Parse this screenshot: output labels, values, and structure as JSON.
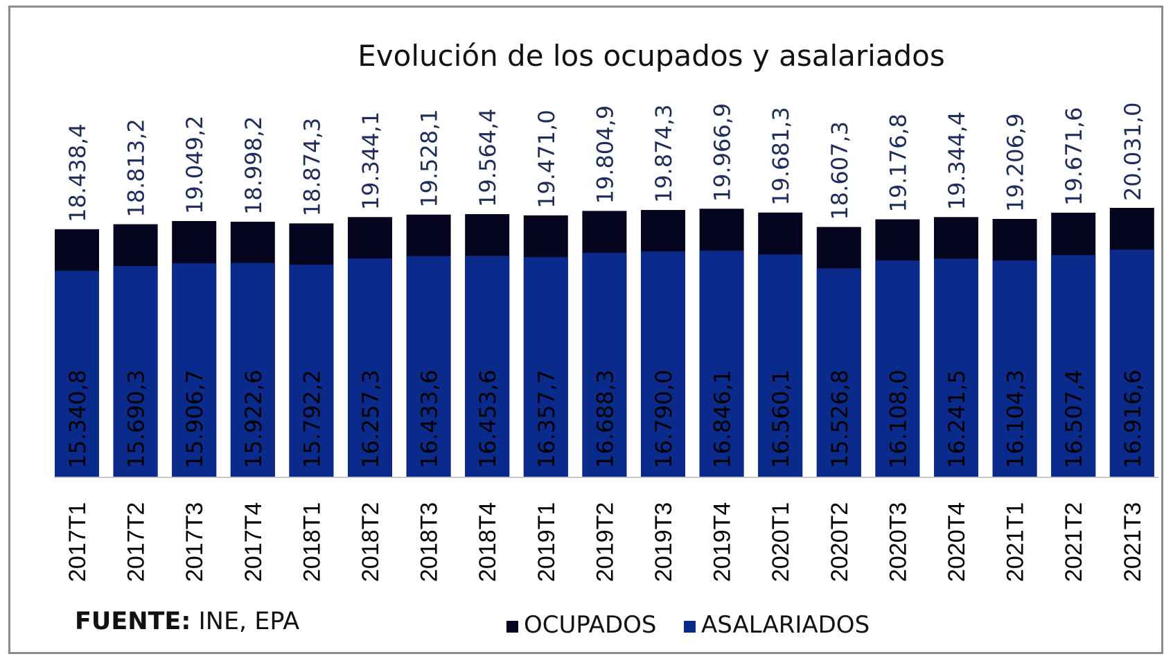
{
  "chart_data": {
    "type": "bar",
    "stacked": true,
    "title": "Evolución de los ocupados y asalariados",
    "xlabel": "",
    "ylabel": "",
    "grid": false,
    "legend_position": "bottom",
    "categories": [
      "2017T1",
      "2017T2",
      "2017T3",
      "2017T4",
      "2018T1",
      "2018T2",
      "2018T3",
      "2018T4",
      "2019T1",
      "2019T2",
      "2019T3",
      "2019T4",
      "2020T1",
      "2020T2",
      "2020T3",
      "2020T4",
      "2021T1",
      "2021T2",
      "2021T3"
    ],
    "series": [
      {
        "name": "OCUPADOS",
        "color": "#05051f",
        "values": [
          18438.4,
          18813.2,
          19049.2,
          18998.2,
          18874.3,
          19344.1,
          19528.1,
          19564.4,
          19471.0,
          19804.9,
          19874.3,
          19966.9,
          19681.3,
          18607.3,
          19176.8,
          19344.4,
          19206.9,
          19671.6,
          20031.0
        ],
        "labels": [
          "18.438,4",
          "18.813,2",
          "19.049,2",
          "18.998,2",
          "18.874,3",
          "19.344,1",
          "19.528,1",
          "19.564,4",
          "19.471,0",
          "19.804,9",
          "19.874,3",
          "19.966,9",
          "19.681,3",
          "18.607,3",
          "19.176,8",
          "19.344,4",
          "19.206,9",
          "19.671,6",
          "20.031,0"
        ]
      },
      {
        "name": "ASALARIADOS",
        "color": "#0a2a8c",
        "values": [
          15340.8,
          15690.3,
          15906.7,
          15922.6,
          15792.2,
          16257.3,
          16433.6,
          16453.6,
          16357.7,
          16688.3,
          16790.0,
          16846.1,
          16560.1,
          15526.8,
          16108.0,
          16241.5,
          16104.3,
          16507.4,
          16916.6
        ],
        "labels": [
          "15.340,8",
          "15.690,3",
          "15.906,7",
          "15.922,6",
          "15.792,2",
          "16.257,3",
          "16.433,6",
          "16.453,6",
          "16.357,7",
          "16.688,3",
          "16.790,0",
          "16.846,1",
          "16.560,1",
          "15.526,8",
          "16.108,0",
          "16.241,5",
          "16.104,3",
          "16.507,4",
          "16.916,6"
        ]
      }
    ],
    "label_colors": {
      "outside": "#1f2d5a",
      "inside": "#000000"
    }
  },
  "source": {
    "label": "FUENTE:",
    "text": " INE, EPA"
  }
}
